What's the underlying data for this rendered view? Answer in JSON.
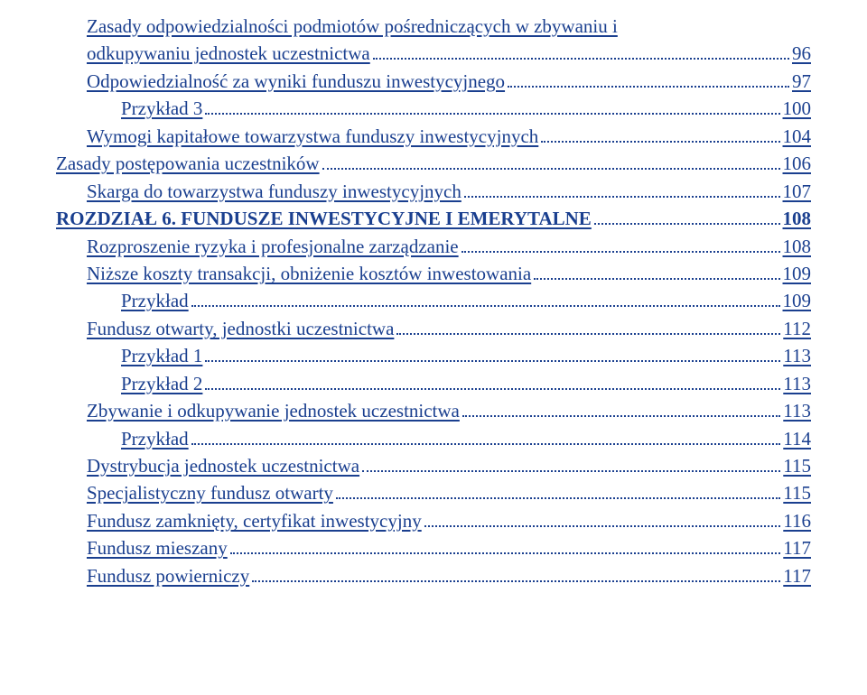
{
  "colors": {
    "text": "#1a3f8f",
    "background": "#ffffff"
  },
  "typography": {
    "fontFamily": "Georgia, serif",
    "fontSize": 21,
    "lineHeight": 1.45
  },
  "entries": [
    {
      "text1": "Zasady odpowiedzialności podmiotów pośredniczących w zbywaniu i",
      "text2": "odkupywaniu jednostek uczestnictwa",
      "page": "96",
      "indent": "lvl-1",
      "bold": false
    },
    {
      "text1": "Odpowiedzialność za wyniki funduszu inwestycyjnego",
      "page": "97",
      "indent": "lvl-1",
      "bold": false
    },
    {
      "text1": "Przykład 3",
      "page": "100",
      "indent": "lvl-2",
      "bold": false
    },
    {
      "text1": "Wymogi kapitałowe towarzystwa funduszy inwestycyjnych",
      "page": "104",
      "indent": "lvl-1",
      "bold": false
    },
    {
      "text1": "Zasady postępowania uczestników",
      "page": "106",
      "indent": "",
      "bold": false
    },
    {
      "text1": "Skarga do towarzystwa funduszy inwestycyjnych",
      "page": "107",
      "indent": "lvl-1",
      "bold": false
    },
    {
      "text1": "ROZDZIAŁ 6. FUNDUSZE INWESTYCYJNE I EMERYTALNE",
      "page": "108",
      "indent": "",
      "bold": true
    },
    {
      "text1": "Rozproszenie ryzyka i profesjonalne zarządzanie",
      "page": "108",
      "indent": "lvl-1",
      "bold": false
    },
    {
      "text1": "Niższe koszty transakcji, obniżenie kosztów inwestowania",
      "page": "109",
      "indent": "lvl-1",
      "bold": false
    },
    {
      "text1": "Przykład",
      "page": "109",
      "indent": "lvl-2",
      "bold": false
    },
    {
      "text1": "Fundusz otwarty, jednostki uczestnictwa",
      "page": "112",
      "indent": "lvl-1",
      "bold": false
    },
    {
      "text1": "Przykład 1",
      "page": "113",
      "indent": "lvl-2",
      "bold": false
    },
    {
      "text1": "Przykład 2",
      "page": "113",
      "indent": "lvl-2",
      "bold": false
    },
    {
      "text1": "Zbywanie i odkupywanie jednostek uczestnictwa",
      "page": "113",
      "indent": "lvl-1",
      "bold": false
    },
    {
      "text1": "Przykład",
      "page": "114",
      "indent": "lvl-2",
      "bold": false
    },
    {
      "text1": "Dystrybucja jednostek uczestnictwa",
      "page": "115",
      "indent": "lvl-1",
      "bold": false
    },
    {
      "text1": "Specjalistyczny fundusz otwarty",
      "page": "115",
      "indent": "lvl-1",
      "bold": false
    },
    {
      "text1": "Fundusz zamknięty, certyfikat inwestycyjny",
      "page": "116",
      "indent": "lvl-1",
      "bold": false
    },
    {
      "text1": "Fundusz mieszany",
      "page": "117",
      "indent": "lvl-1",
      "bold": false
    },
    {
      "text1": "Fundusz powierniczy",
      "page": "117",
      "indent": "lvl-1",
      "bold": false
    }
  ]
}
